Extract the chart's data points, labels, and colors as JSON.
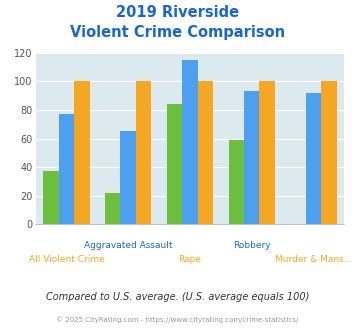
{
  "title_line1": "2019 Riverside",
  "title_line2": "Violent Crime Comparison",
  "categories_top": [
    "Aggravated Assault",
    "",
    "Robbery",
    ""
  ],
  "categories_bottom": [
    "All Violent Crime",
    "Rape",
    "",
    "Murder & Mans..."
  ],
  "xtick_top": [
    "",
    "Aggravated Assault",
    "",
    "Robbery",
    ""
  ],
  "xtick_bottom": [
    "All Violent Crime",
    "",
    "Rape",
    "",
    "Murder & Mans..."
  ],
  "series": {
    "Riverside": [
      37,
      22,
      84,
      59,
      0
    ],
    "Ohio": [
      77,
      65,
      115,
      93,
      92
    ],
    "National": [
      100,
      100,
      100,
      100,
      100
    ]
  },
  "colors": {
    "Riverside": "#6dbf3e",
    "Ohio": "#4da0f0",
    "National": "#f5a623"
  },
  "ylim": [
    0,
    120
  ],
  "yticks": [
    0,
    20,
    40,
    60,
    80,
    100,
    120
  ],
  "plot_bg": "#dce9ef",
  "title_color": "#1a66cc",
  "xtick_color_top": "#1a66cc",
  "xtick_color_bottom": "#f5a623",
  "legend_text_color": "#333333",
  "footer_note": "Compared to U.S. average. (U.S. average equals 100)",
  "copyright": "© 2025 CityRating.com - https://www.cityrating.com/crime-statistics/",
  "footer_color": "#333333",
  "copyright_color": "#999999",
  "copyright_link_color": "#4da0f0"
}
